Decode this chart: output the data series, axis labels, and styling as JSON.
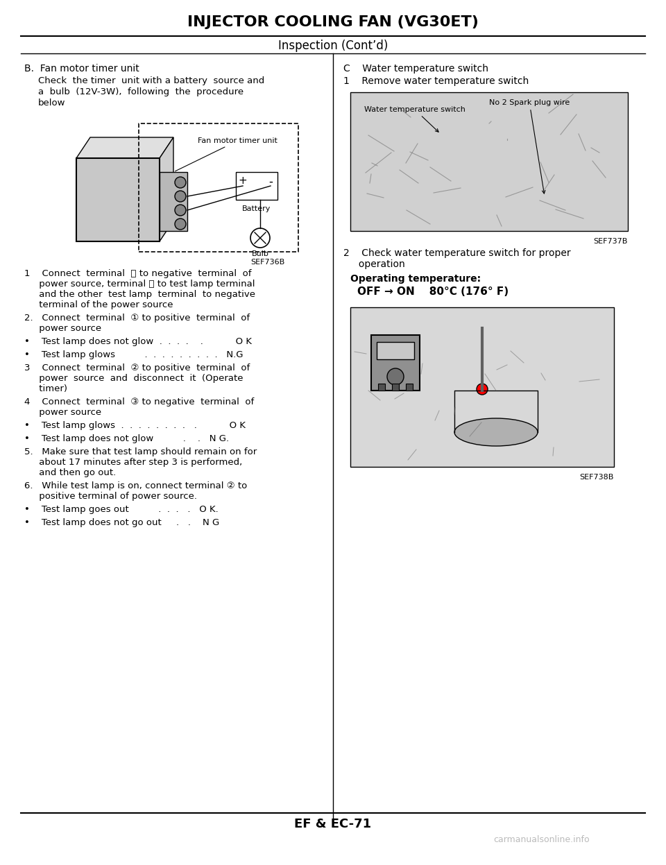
{
  "title": "INJECTOR COOLING FAN (VG30ET)",
  "subtitle": "Inspection (Cont’d)",
  "footer": "EF & EC-71",
  "watermark": "carmanualsonline.info",
  "bg_color": "#ffffff",
  "text_color": "#000000",
  "left_col": {
    "section_b_title": "B.  Fan motor timer unit",
    "section_b_desc": "Check  the timer  unit with a battery  source and\na  bulb  (12V-3W),  following  the  procedure\nbelow",
    "diagram1_label": "Fan motor timer unit",
    "diagram1_sublabels": [
      "Battery",
      "Bulb"
    ],
    "diagram1_ref": "SEF736B",
    "steps": [
      "1    Connect  terminal  ⓖ to negative  terminal  of\n     power source, terminal ⓔ to test lamp terminal\n     and the other  test lamp  terminal  to negative\n     terminal of the power source",
      "2.   Connect  terminal  ① to positive  terminal  of\n     power source",
      "•    Test lamp does not glow  .  .  .  .    .           O K",
      "•    Test lamp glows          .  .  .  .  .  .  .  .  .   N.G",
      "3    Connect  terminal  ② to positive  terminal  of\n     power  source  and  disconnect  it  (Operate\n     timer)",
      "4    Connect  terminal  ③ to negative  terminal  of\n     power source",
      "•    Test lamp glows  .  .  .  .  .  .  .  .   .           O K",
      "•    Test lamp does not glow          .    .   N G.",
      "5.   Make sure that test lamp should remain on for\n     about 17 minutes after step 3 is performed,\n     and then go out.",
      "6.   While test lamp is on, connect terminal ② to\n     positive terminal of power source.",
      "•    Test lamp goes out          .  .  .   .   O K.",
      "•    Test lamp does not go out     .   .    N G"
    ]
  },
  "right_col": {
    "section_c_title": "C    Water temperature switch",
    "step1_title": "1    Remove water temperature switch",
    "diagram2_labels": [
      "Water temperature switch",
      "No 2 Spark plug wire"
    ],
    "diagram2_ref": "SEF737B",
    "step2_title": "2    Check water temperature switch for proper\n     operation",
    "operating_temp_title": "Operating temperature:",
    "operating_temp_value": "OFF → ON    80°C (176° F)",
    "diagram3_ref": "SEF738B"
  }
}
